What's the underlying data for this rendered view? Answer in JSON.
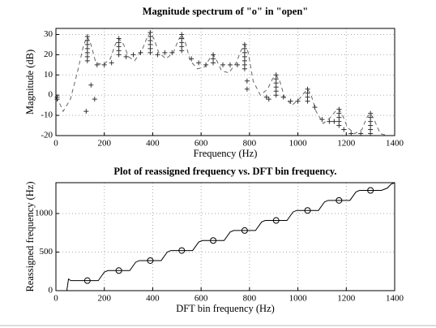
{
  "chart_data": [
    {
      "type": "line",
      "title": "Magnitude spectrum of \"o\" in \"open\"",
      "xlabel": "Frequency (Hz)",
      "ylabel": "Magnitude (dB)",
      "xlim": [
        0,
        1400
      ],
      "xticks": [
        0,
        200,
        400,
        600,
        800,
        1000,
        1200,
        1400
      ],
      "ylim": [
        -20,
        33
      ],
      "yticks": [
        -20,
        -10,
        0,
        10,
        20,
        30
      ],
      "grid": true,
      "series": [
        {
          "mode": "lines",
          "dash": true,
          "color": "#666666",
          "x": [
            0,
            15,
            30,
            60,
            90,
            115,
            130,
            145,
            165,
            195,
            225,
            245,
            260,
            280,
            300,
            325,
            355,
            375,
            390,
            405,
            425,
            455,
            485,
            505,
            520,
            535,
            555,
            585,
            615,
            635,
            650,
            665,
            685,
            715,
            745,
            765,
            780,
            795,
            815,
            845,
            875,
            895,
            910,
            925,
            945,
            975,
            1005,
            1025,
            1040,
            1055,
            1075,
            1105,
            1135,
            1155,
            1170,
            1185,
            1205,
            1235,
            1265,
            1285,
            1300,
            1315,
            1340,
            1370
          ],
          "values": [
            -1,
            -4,
            -8,
            -2,
            12,
            25,
            29,
            25,
            16,
            15,
            18,
            25,
            28,
            25,
            19,
            17,
            22,
            28,
            31,
            28,
            21,
            18,
            21,
            27,
            30,
            26,
            17,
            13,
            14,
            18,
            20,
            17,
            12,
            11,
            16,
            22,
            25,
            21,
            7,
            0,
            3,
            8,
            10,
            7,
            -1,
            -5,
            -2,
            1,
            3,
            0,
            -8,
            -14,
            -11,
            -8,
            -7,
            -10,
            -16,
            -19,
            -17,
            -11,
            -9,
            -12,
            -19,
            -20
          ]
        },
        {
          "mode": "markers",
          "marker": "+",
          "color": "#333333",
          "x": [
            5,
            5,
            125,
            145,
            160,
            130,
            130,
            130,
            130,
            130,
            130,
            130,
            170,
            200,
            230,
            260,
            260,
            260,
            260,
            260,
            290,
            320,
            350,
            390,
            390,
            390,
            390,
            390,
            390,
            420,
            450,
            480,
            520,
            520,
            520,
            520,
            520,
            560,
            590,
            620,
            650,
            650,
            650,
            690,
            720,
            750,
            780,
            780,
            780,
            780,
            780,
            780,
            780,
            790,
            790,
            870,
            880,
            910,
            910,
            910,
            910,
            910,
            910,
            940,
            970,
            1000,
            1040,
            1040,
            1040,
            1040,
            1070,
            1100,
            1130,
            1150,
            1170,
            1170,
            1170,
            1170,
            1170,
            1190,
            1220,
            1260,
            1300,
            1300,
            1300,
            1300,
            1300,
            1300
          ],
          "values": [
            -1,
            -2,
            -8,
            5,
            -2,
            29,
            27,
            25,
            23,
            21,
            19,
            17,
            15,
            15,
            16,
            28,
            26,
            24,
            22,
            20,
            19,
            20,
            21,
            31,
            29,
            27,
            25,
            23,
            21,
            20,
            21,
            21,
            30,
            28,
            26,
            24,
            22,
            18,
            16,
            15,
            20,
            18,
            16,
            15,
            15,
            15,
            25,
            23,
            21,
            19,
            17,
            15,
            13,
            3,
            7,
            -1,
            -2,
            10,
            8,
            6,
            4,
            2,
            0,
            -1,
            -3,
            -3,
            3,
            1,
            -1,
            -3,
            -6,
            -12,
            -13,
            -13,
            -7,
            -9,
            -11,
            -13,
            -15,
            -17,
            -19,
            -19,
            -9,
            -11,
            -13,
            -15,
            -17,
            -19
          ]
        }
      ]
    },
    {
      "type": "line",
      "title": "Plot of reassigned frequency vs. DFT bin frequency.",
      "xlabel": "DFT bin frequency (Hz)",
      "ylabel": "Reassigned frequency (Hz)",
      "xlim": [
        0,
        1400
      ],
      "xticks": [
        0,
        200,
        400,
        600,
        800,
        1000,
        1200,
        1400
      ],
      "ylim": [
        0,
        1400
      ],
      "yticks": [
        0,
        500,
        1000
      ],
      "grid": true,
      "series": [
        {
          "mode": "lines",
          "dash": false,
          "color": "#000000",
          "x": [
            45,
            52,
            62,
            175,
            200,
            215,
            305,
            330,
            345,
            435,
            460,
            475,
            565,
            590,
            605,
            695,
            720,
            735,
            825,
            850,
            865,
            955,
            980,
            995,
            1085,
            1110,
            1125,
            1215,
            1240,
            1255,
            1345,
            1370,
            1385,
            1400
          ],
          "values": [
            0,
            150,
            130,
            130,
            240,
            260,
            260,
            370,
            390,
            390,
            500,
            520,
            520,
            630,
            650,
            650,
            760,
            780,
            780,
            890,
            910,
            910,
            1020,
            1040,
            1040,
            1150,
            1170,
            1170,
            1280,
            1300,
            1300,
            1330,
            1380,
            1400
          ]
        },
        {
          "mode": "markers",
          "marker": "o",
          "color": "#000000",
          "x": [
            130,
            260,
            390,
            520,
            650,
            780,
            910,
            1040,
            1170,
            1300
          ],
          "values": [
            130,
            260,
            390,
            520,
            650,
            780,
            910,
            1040,
            1170,
            1300
          ]
        }
      ]
    }
  ]
}
